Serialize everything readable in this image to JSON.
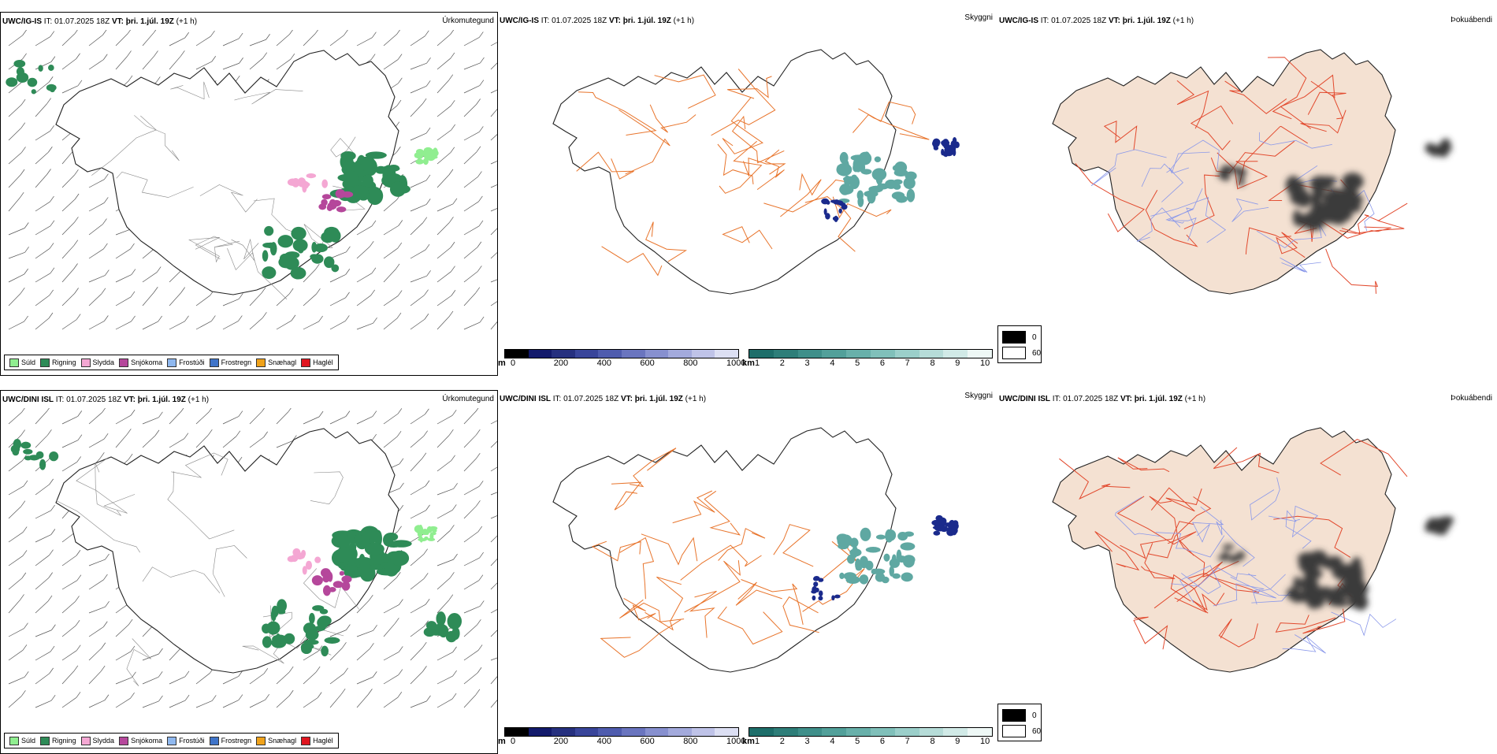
{
  "panels": {
    "r0c0": {
      "model": "UWC/IG-IS",
      "it_label": "IT:",
      "it_value": "01.07.2025 18Z",
      "vt_label": "VT:",
      "vt_value": "þri. 1.júl. 19Z",
      "lead": "(+1 h)",
      "title": "Úrkomutegund"
    },
    "r0c1": {
      "model": "UWC/IG-IS",
      "it_label": "IT:",
      "it_value": "01.07.2025 18Z",
      "vt_label": "VT:",
      "vt_value": "þri. 1.júl. 19Z",
      "lead": "(+1 h)",
      "title": "Skyggni"
    },
    "r0c2": {
      "model": "UWC/IG-IS",
      "it_label": "IT:",
      "it_value": "01.07.2025 18Z",
      "vt_label": "VT:",
      "vt_value": "þri. 1.júl. 19Z",
      "lead": "(+1 h)",
      "title": "Þokuábendi"
    },
    "r1c0": {
      "model": "UWC/DINI ISL",
      "it_label": "IT:",
      "it_value": "01.07.2025 18Z",
      "vt_label": "VT:",
      "vt_value": "þri. 1.júl. 19Z",
      "lead": "(+1 h)",
      "title": "Úrkomutegund"
    },
    "r1c1": {
      "model": "UWC/DINI ISL",
      "it_label": "IT:",
      "it_value": "01.07.2025 18Z",
      "vt_label": "VT:",
      "vt_value": "þri. 1.júl. 19Z",
      "lead": "(+1 h)",
      "title": "Skyggni"
    },
    "r1c2": {
      "model": "UWC/DINI ISL",
      "it_label": "IT:",
      "it_value": "01.07.2025 18Z",
      "vt_label": "VT:",
      "vt_value": "þri. 1.júl. 19Z",
      "lead": "(+1 h)",
      "title": "Þokuábendi"
    }
  },
  "precip_legend": [
    {
      "label": "Súld",
      "color": "#90ee90"
    },
    {
      "label": "Rigning",
      "color": "#2e8b57"
    },
    {
      "label": "Slydda",
      "color": "#f4a7d3"
    },
    {
      "label": "Snjókoma",
      "color": "#b5479b"
    },
    {
      "label": "Frostúði",
      "color": "#8fb8ef"
    },
    {
      "label": "Frostregn",
      "color": "#3f74c9"
    },
    {
      "label": "Snæhagl",
      "color": "#f0a21a"
    },
    {
      "label": "Haglél",
      "color": "#e0151f"
    }
  ],
  "elevation_bar": {
    "unit": "m",
    "ticks": [
      "0",
      "200",
      "400",
      "600",
      "800",
      "1000"
    ],
    "colors": [
      "#000000",
      "#131a6b",
      "#26307f",
      "#39459a",
      "#4f5cae",
      "#6a75bf",
      "#8790cf",
      "#a3aadc",
      "#bfc3e8",
      "#dcdff3"
    ]
  },
  "visibility_bar": {
    "unit": "km",
    "ticks": [
      "1",
      "2",
      "3",
      "4",
      "5",
      "6",
      "7",
      "8",
      "9",
      "10"
    ],
    "colors": [
      "#1e6e6a",
      "#2e7e79",
      "#3f8f8a",
      "#52a09a",
      "#68b0aa",
      "#80c0ba",
      "#9bcfca",
      "#b6dcd8",
      "#d1eae7",
      "#eef8f6"
    ]
  },
  "fog_key": {
    "max_label": "0",
    "min_label": "60",
    "max_color": "#000000",
    "min_color": "#ffffff"
  },
  "map_colors": {
    "land_fill": "#f4e1d2",
    "road": "#e8742b",
    "road_red": "#e2492d",
    "lake": "#8a98ea",
    "coast": "#222222",
    "rain": "#2e8b57",
    "drizzle": "#90ee90",
    "snow": "#b5479b",
    "sleet": "#f4a7d3",
    "vis_dark": "#1a2a8c",
    "vis_teal": "#5fa8a2",
    "fog": "#3a3a3a"
  }
}
